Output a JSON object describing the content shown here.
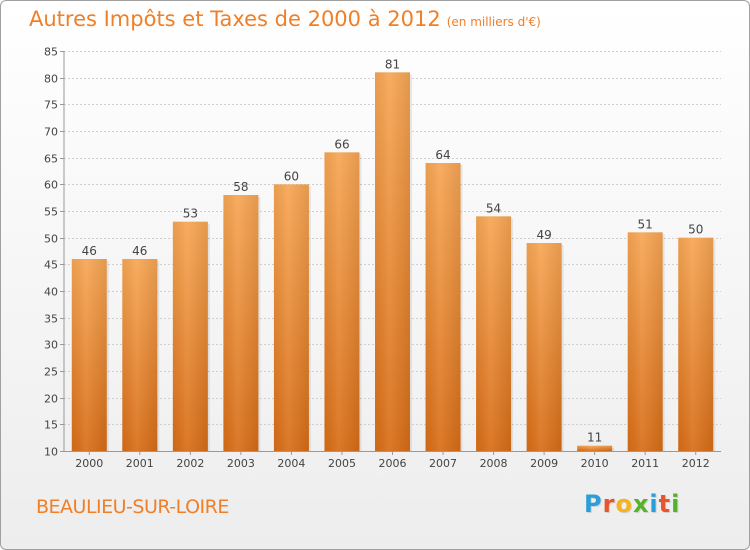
{
  "chart_data": {
    "type": "bar",
    "title": "Autres Impôts et Taxes de 2000 à 2012",
    "unit": "(en milliers d'€)",
    "categories": [
      "2000",
      "2001",
      "2002",
      "2003",
      "2004",
      "2005",
      "2006",
      "2007",
      "2008",
      "2009",
      "2010",
      "2011",
      "2012"
    ],
    "values": [
      46,
      46,
      53,
      58,
      60,
      66,
      81,
      64,
      54,
      49,
      11,
      51,
      50
    ],
    "ylim": [
      10,
      85
    ],
    "yticks": [
      10,
      15,
      20,
      25,
      30,
      35,
      40,
      45,
      50,
      55,
      60,
      65,
      70,
      75,
      80,
      85
    ],
    "grid": true,
    "bar_color_top": "#f7a654",
    "bar_color_bottom": "#d86d16"
  },
  "footer": {
    "commune": "BEAULIEU-SUR-LOIRE",
    "logo_letters": [
      "P",
      "r",
      "o",
      "x",
      "i",
      "t",
      "i"
    ],
    "logo_colors": [
      "#2a9ed8",
      "#e8542b",
      "#f5b31c",
      "#55b32a",
      "#2a9ed8",
      "#e8542b",
      "#55b32a"
    ]
  }
}
